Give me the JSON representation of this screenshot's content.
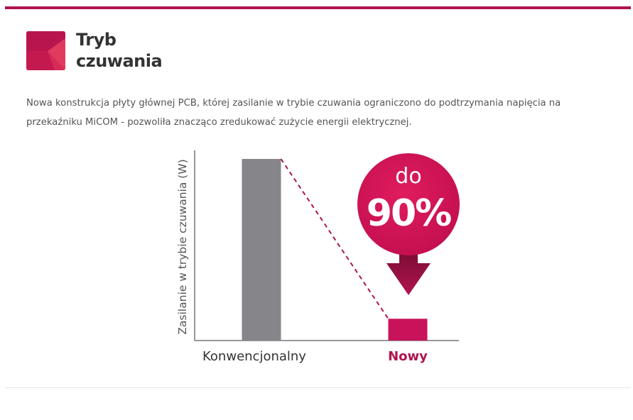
{
  "theme": {
    "accent": "#b0134f",
    "accent_bright": "#d4145a",
    "bar_gray": "#86868a",
    "axis_color": "#777777",
    "text_dark": "#333333",
    "text_body": "#555555"
  },
  "header": {
    "icon": "red-square-logo-icon",
    "title_line1": "Tryb",
    "title_line2": "czuwania"
  },
  "description": "Nowa konstrukcja płyty głównej PCB, której zasilanie w trybie czuwania ograniczono do podtrzymania napięcia na przekaźniku MiCOM - pozwoliła znacząco zredukować zużycie energii elektrycznej.",
  "chart_data": {
    "type": "bar",
    "categories": [
      "Konwencjonalny",
      "Nowy"
    ],
    "values": [
      100,
      12
    ],
    "ylabel": "Zasilanie w trybie czuwania (W)",
    "xlabel": "",
    "ylim": [
      0,
      100
    ],
    "grid": false,
    "bar_colors": [
      "#86868a",
      "#c8125a"
    ],
    "label_colors": [
      "#333333",
      "#b0134f"
    ],
    "reduction_badge": {
      "line1": "do",
      "line2": "90%"
    }
  }
}
